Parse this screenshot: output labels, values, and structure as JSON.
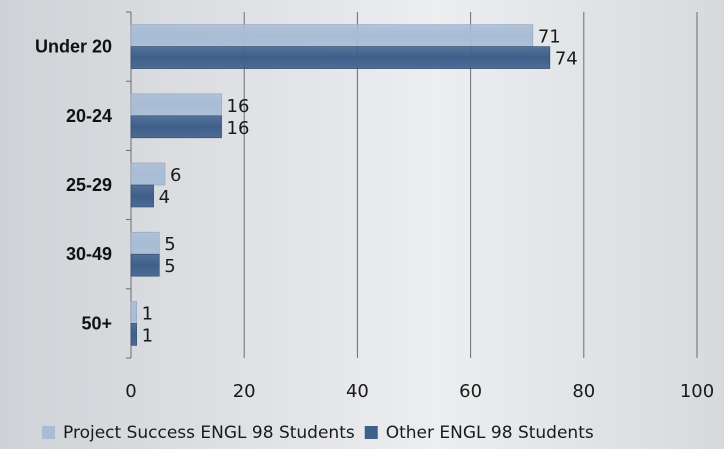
{
  "chart_data": {
    "type": "bar",
    "orientation": "horizontal",
    "categories": [
      "Under 20",
      "20-24",
      "25-29",
      "30-49",
      "50+"
    ],
    "series": [
      {
        "name": "Project Success ENGL 98 Students",
        "values": [
          71,
          16,
          6,
          5,
          1
        ],
        "color": "#a8bcd6"
      },
      {
        "name": "Other ENGL 98 Students",
        "values": [
          74,
          16,
          4,
          5,
          1
        ],
        "color": "#3e5f8a"
      }
    ],
    "xlim": [
      0,
      100
    ],
    "xticks": [
      0,
      20,
      40,
      60,
      80,
      100
    ],
    "grid": true,
    "legend_position": "bottom"
  }
}
